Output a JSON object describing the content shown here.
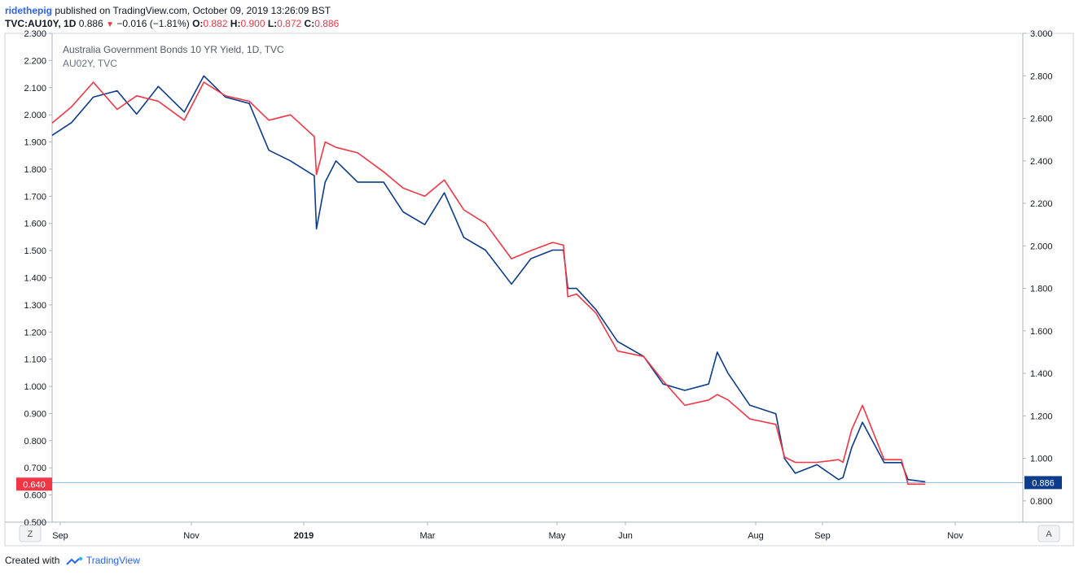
{
  "header": {
    "author": "ridethepig",
    "published": "published on TradingView.com, October 09, 2019 13:26:09 BST"
  },
  "ohlc": {
    "symbol": "TVC:AU10Y, 1D",
    "last": "0.886",
    "change": "−0.016 (−1.81%)",
    "o_label": "O:",
    "o": "0.882",
    "h_label": "H:",
    "h": "0.900",
    "l_label": "L:",
    "l": "0.872",
    "c_label": "C:",
    "c": "0.886"
  },
  "footer": {
    "created": "Created with",
    "brand": "TradingView"
  },
  "buttons": {
    "left": "Z",
    "right": "A"
  },
  "colors": {
    "au10y": "#0c3c8c",
    "au02y": "#f23645",
    "grid": "#e9ecef",
    "axis": "#aeb4bd",
    "text": "#131722"
  },
  "chart_data": {
    "type": "line",
    "title": "Australia Government Bonds 10 YR Yield, 1D, TVC",
    "subtitle": "AU02Y, TVC",
    "left_axis": {
      "ylim": [
        0.5,
        2.3
      ],
      "ticks": [
        "2.300",
        "2.200",
        "2.100",
        "2.000",
        "1.900",
        "1.800",
        "1.700",
        "1.600",
        "1.500",
        "1.400",
        "1.300",
        "1.200",
        "1.100",
        "1.000",
        "0.900",
        "0.800",
        "0.700",
        "0.600",
        "0.500"
      ]
    },
    "right_axis": {
      "ylim": [
        0.7,
        3.0
      ],
      "ticks": [
        "3.000",
        "2.800",
        "2.600",
        "2.400",
        "2.200",
        "2.000",
        "1.800",
        "1.600",
        "1.400",
        "1.200",
        "1.000",
        "0.800"
      ]
    },
    "x_labels": [
      "Sep",
      "Nov",
      "2019",
      "Mar",
      "May",
      "Jun",
      "Aug",
      "Sep",
      "Nov"
    ],
    "x_range": [
      "2018-09-01",
      "2019-11-23"
    ],
    "last_labels": {
      "left": "0.640",
      "right": "0.886"
    },
    "grid": true,
    "series": [
      {
        "key": "au10y",
        "axis": "right",
        "x": [
          "2018-09-01",
          "2018-09-10",
          "2018-09-20",
          "2018-10-01",
          "2018-10-10",
          "2018-10-20",
          "2018-11-01",
          "2018-11-10",
          "2018-11-20",
          "2018-12-01",
          "2018-12-10",
          "2018-12-20",
          "2018-12-31",
          "2019-01-01",
          "2019-01-05",
          "2019-01-10",
          "2019-01-20",
          "2019-02-01",
          "2019-02-10",
          "2019-02-20",
          "2019-03-01",
          "2019-03-10",
          "2019-03-20",
          "2019-04-01",
          "2019-04-10",
          "2019-04-20",
          "2019-04-25",
          "2019-04-27",
          "2019-05-01",
          "2019-05-10",
          "2019-05-20",
          "2019-06-01",
          "2019-06-10",
          "2019-06-20",
          "2019-07-01",
          "2019-07-05",
          "2019-07-10",
          "2019-07-20",
          "2019-08-01",
          "2019-08-05",
          "2019-08-10",
          "2019-08-20",
          "2019-08-30",
          "2019-09-01",
          "2019-09-05",
          "2019-09-10",
          "2019-09-20",
          "2019-09-28",
          "2019-10-01",
          "2019-10-09"
        ],
        "values": [
          2.52,
          2.58,
          2.7,
          2.73,
          2.62,
          2.75,
          2.63,
          2.8,
          2.7,
          2.67,
          2.45,
          2.4,
          2.33,
          2.08,
          2.3,
          2.4,
          2.3,
          2.3,
          2.16,
          2.1,
          2.25,
          2.04,
          1.98,
          1.82,
          1.94,
          1.98,
          1.98,
          1.8,
          1.8,
          1.7,
          1.55,
          1.48,
          1.35,
          1.32,
          1.35,
          1.5,
          1.4,
          1.25,
          1.21,
          1.0,
          0.93,
          0.97,
          0.9,
          0.91,
          1.05,
          1.17,
          0.98,
          0.98,
          0.9,
          0.89
        ]
      },
      {
        "key": "au02y",
        "axis": "left",
        "x": [
          "2018-09-01",
          "2018-09-10",
          "2018-09-20",
          "2018-10-01",
          "2018-10-10",
          "2018-10-20",
          "2018-11-01",
          "2018-11-10",
          "2018-11-20",
          "2018-12-01",
          "2018-12-10",
          "2018-12-20",
          "2018-12-31",
          "2019-01-01",
          "2019-01-05",
          "2019-01-10",
          "2019-01-20",
          "2019-02-01",
          "2019-02-10",
          "2019-02-20",
          "2019-03-01",
          "2019-03-10",
          "2019-03-20",
          "2019-04-01",
          "2019-04-10",
          "2019-04-20",
          "2019-04-25",
          "2019-04-27",
          "2019-05-01",
          "2019-05-10",
          "2019-05-20",
          "2019-06-01",
          "2019-06-10",
          "2019-06-20",
          "2019-07-01",
          "2019-07-05",
          "2019-07-10",
          "2019-07-20",
          "2019-08-01",
          "2019-08-05",
          "2019-08-10",
          "2019-08-20",
          "2019-08-30",
          "2019-09-01",
          "2019-09-05",
          "2019-09-10",
          "2019-09-20",
          "2019-09-28",
          "2019-10-01",
          "2019-10-09"
        ],
        "values": [
          1.97,
          2.03,
          2.12,
          2.02,
          2.07,
          2.05,
          1.98,
          2.12,
          2.07,
          2.05,
          1.98,
          2.0,
          1.92,
          1.78,
          1.9,
          1.88,
          1.86,
          1.79,
          1.73,
          1.7,
          1.76,
          1.65,
          1.6,
          1.47,
          1.5,
          1.53,
          1.52,
          1.33,
          1.34,
          1.27,
          1.13,
          1.11,
          1.02,
          0.93,
          0.95,
          0.97,
          0.95,
          0.88,
          0.86,
          0.74,
          0.72,
          0.72,
          0.73,
          0.72,
          0.84,
          0.93,
          0.73,
          0.73,
          0.64,
          0.64
        ]
      }
    ]
  }
}
